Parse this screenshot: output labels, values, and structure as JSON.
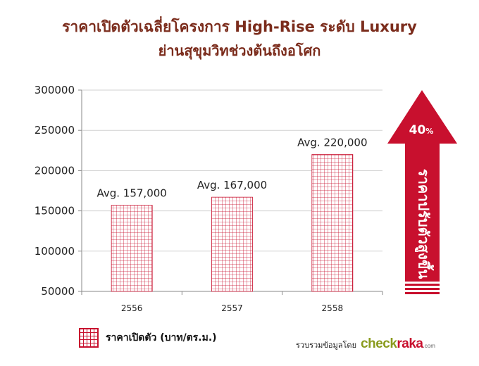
{
  "title": "ราคาเปิดตัวเฉลี่ยโครงการ High-Rise ระดับ Luxury",
  "subtitle": "ย่านสุขุมวิทช่วงต้นถึงอโศก",
  "colors": {
    "title": "#7b2c1c",
    "bar_grid": "#c8102e",
    "arrow": "#c8102e",
    "axis": "#888888"
  },
  "chart_data": {
    "type": "bar",
    "categories": [
      "2556",
      "2557",
      "2558"
    ],
    "series": [
      {
        "name": "ราคาเปิดตัว (บาท/ตร.ม.)",
        "values": [
          157000,
          167000,
          220000
        ]
      }
    ],
    "data_labels": [
      "Avg. 157,000",
      "Avg. 167,000",
      "Avg. 220,000"
    ],
    "yticks": [
      "300000",
      "250000",
      "200000",
      "150000",
      "100000",
      "50000"
    ],
    "ylim": [
      50000,
      300000
    ],
    "grid": true,
    "legend_position": "bottom-left"
  },
  "arrow": {
    "percent": "40",
    "percent_suffix": "%",
    "label": "ราคาปรับตัวสูงขึ้น"
  },
  "credit": {
    "label": "รวบรวมข้อมูลโดย",
    "brand_a": "check",
    "brand_b": "raka",
    "brand_domain": ".com"
  }
}
